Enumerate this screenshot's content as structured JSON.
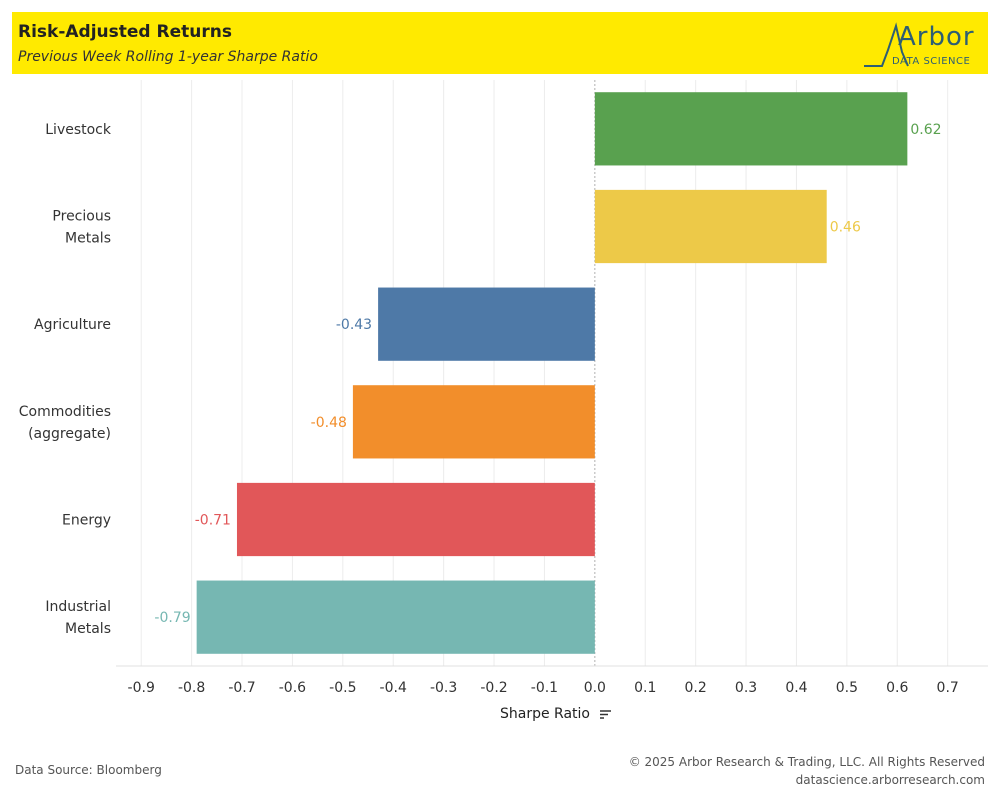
{
  "header": {
    "title": "Risk-Adjusted Returns",
    "subtitle": "Previous Week Rolling 1-year Sharpe Ratio",
    "background": "#ffea00"
  },
  "logo": {
    "wordmark": "Arbor",
    "tagline": "DATA SCIENCE",
    "color": "#2d5f73"
  },
  "chart_data": {
    "type": "bar",
    "orientation": "horizontal",
    "categories": [
      "Livestock",
      "Precious Metals",
      "Agriculture",
      "Commodities (aggregate)",
      "Energy",
      "Industrial Metals"
    ],
    "category_lines": [
      [
        "Livestock"
      ],
      [
        "Precious",
        "Metals"
      ],
      [
        "Agriculture"
      ],
      [
        "Commodities",
        "(aggregate)"
      ],
      [
        "Energy"
      ],
      [
        "Industrial",
        "Metals"
      ]
    ],
    "values": [
      0.62,
      0.46,
      -0.43,
      -0.48,
      -0.71,
      -0.79
    ],
    "value_labels": [
      "0.62",
      "0.46",
      "-0.43",
      "-0.48",
      "-0.71",
      "-0.79"
    ],
    "colors": [
      "#59a14f",
      "#edc948",
      "#4e79a7",
      "#f28e2b",
      "#e15759",
      "#76b7b2"
    ],
    "xlabel": "Sharpe Ratio",
    "xlim": [
      -0.95,
      0.78
    ],
    "xticks": [
      -0.9,
      -0.8,
      -0.7,
      -0.6,
      -0.5,
      -0.4,
      -0.3,
      -0.2,
      -0.1,
      0.0,
      0.1,
      0.2,
      0.3,
      0.4,
      0.5,
      0.6,
      0.7
    ],
    "xtick_labels": [
      "-0.9",
      "-0.8",
      "-0.7",
      "-0.6",
      "-0.5",
      "-0.4",
      "-0.3",
      "-0.2",
      "-0.1",
      "0.0",
      "0.1",
      "0.2",
      "0.3",
      "0.4",
      "0.5",
      "0.6",
      "0.7"
    ],
    "grid": true,
    "sorted": "descending"
  },
  "footer": {
    "source": "Data Source: Bloomberg",
    "copyright": "© 2025 Arbor Research & Trading, LLC. All Rights Reserved",
    "website": "datascience.arborresearch.com"
  }
}
